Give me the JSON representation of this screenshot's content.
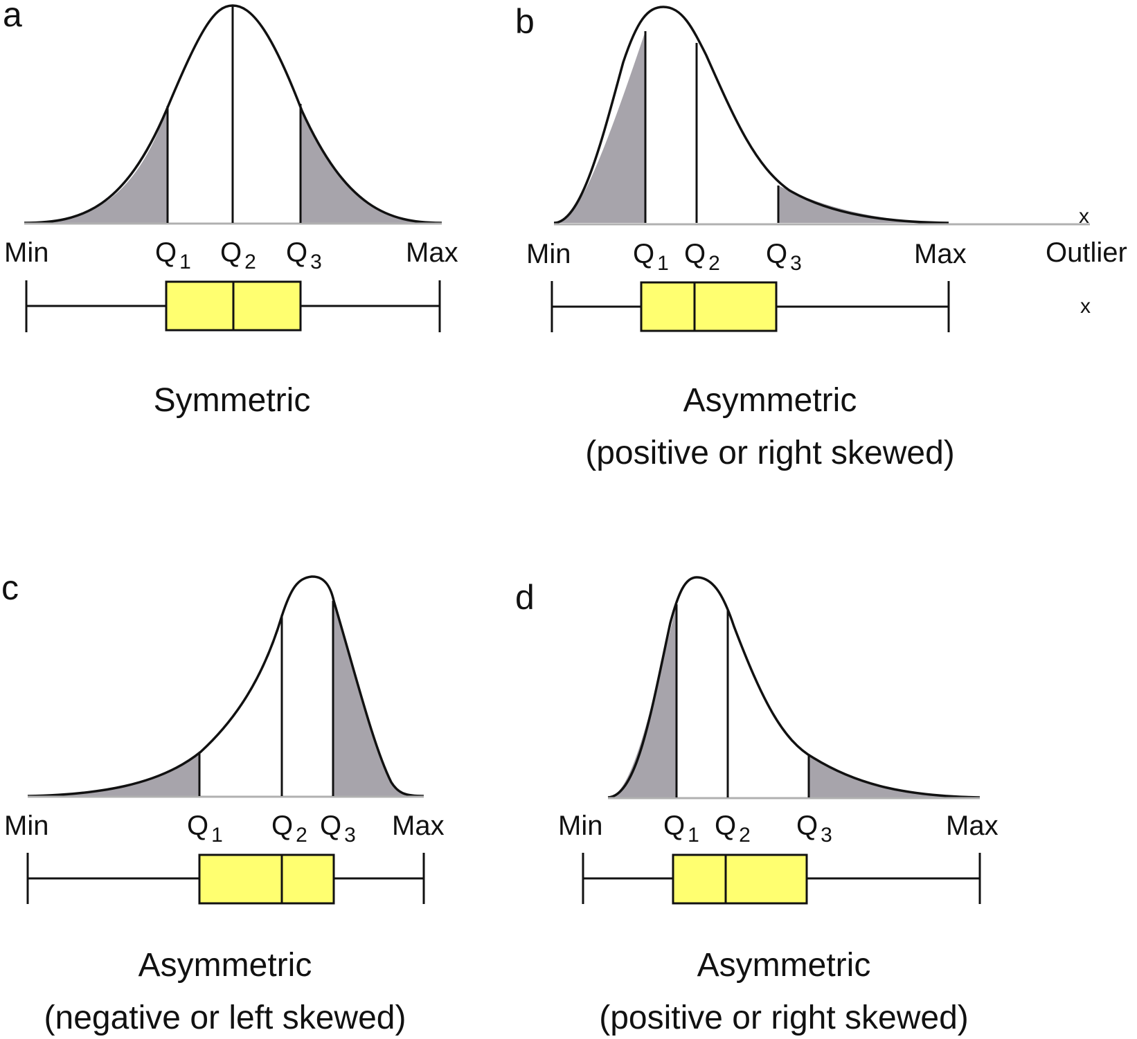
{
  "panels": {
    "a": {
      "letter": "a",
      "min_label": "Min",
      "q1_label": "Q",
      "q1_sub": "1",
      "q2_label": "Q",
      "q2_sub": "2",
      "q3_label": "Q",
      "q3_sub": "3",
      "max_label": "Max",
      "caption_line1": "Symmetric",
      "caption_line2": ""
    },
    "b": {
      "letter": "b",
      "min_label": "Min",
      "q1_label": "Q",
      "q1_sub": "1",
      "q2_label": "Q",
      "q2_sub": "2",
      "q3_label": "Q",
      "q3_sub": "3",
      "max_label": "Max",
      "outlier_label": "Outlier",
      "outlier_mark": "x",
      "outlier_box_mark": "x",
      "caption_line1": "Asymmetric",
      "caption_line2": "(positive or right skewed)"
    },
    "c": {
      "letter": "c",
      "min_label": "Min",
      "q1_label": "Q",
      "q1_sub": "1",
      "q2_label": "Q",
      "q2_sub": "2",
      "q3_label": "Q",
      "q3_sub": "3",
      "max_label": "Max",
      "caption_line1": "Asymmetric",
      "caption_line2": "(negative or left skewed)"
    },
    "d": {
      "letter": "d",
      "min_label": "Min",
      "q1_label": "Q",
      "q1_sub": "1",
      "q2_label": "Q",
      "q2_sub": "2",
      "q3_label": "Q",
      "q3_sub": "3",
      "max_label": "Max",
      "caption_line1": "Asymmetric",
      "caption_line2": "(positive or right skewed)"
    }
  },
  "colors": {
    "box_fill": "#ffff70",
    "tail_shade": "#a7a4ab",
    "line": "#111111"
  }
}
